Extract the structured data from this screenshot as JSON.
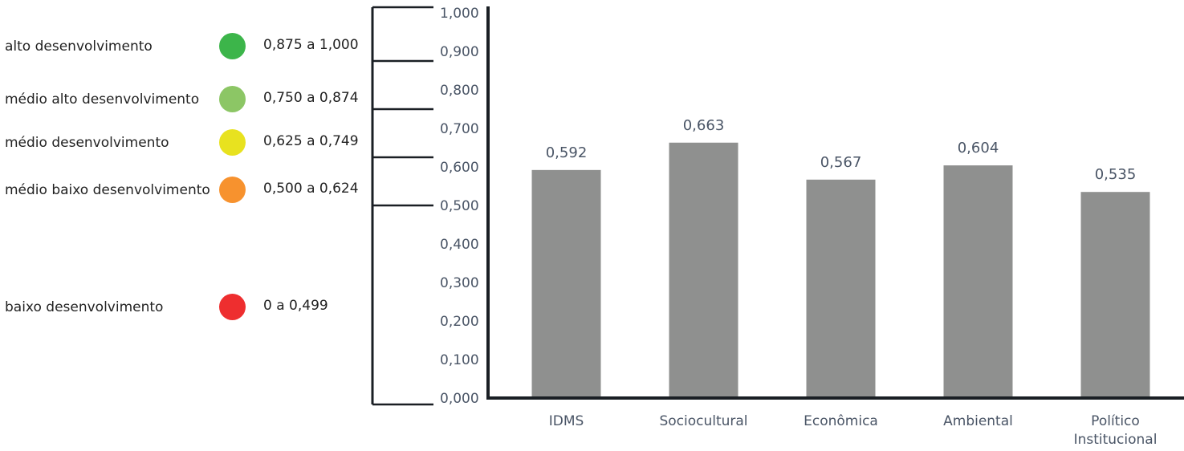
{
  "legend": [
    {
      "label": "alto desenvolvimento",
      "range": "0,875 a 1,000",
      "color": "#3cb54a"
    },
    {
      "label": "médio alto desenvolvimento",
      "range": "0,750 a 0,874",
      "color": "#8cc665"
    },
    {
      "label": "médio desenvolvimento",
      "range": "0,625 a 0,749",
      "color": "#e8e21f"
    },
    {
      "label": "médio baixo desenvolvimento",
      "range": "0,500 a 0,624",
      "color": "#f7922e"
    },
    {
      "label": "baixo desenvolvimento",
      "range": "0 a 0,499",
      "color": "#ee2e2f"
    }
  ],
  "chart_data": {
    "type": "bar",
    "categories": [
      "IDMS",
      "Sociocultural",
      "Econômica",
      "Ambiental",
      "Político Institucional"
    ],
    "values": [
      0.592,
      0.663,
      0.567,
      0.604,
      0.535
    ],
    "value_labels": [
      "0,592",
      "0,663",
      "0,567",
      "0,604",
      "0,535"
    ],
    "ylim": [
      0,
      1.0
    ],
    "yticks": [
      "0,000",
      "0,100",
      "0,200",
      "0,300",
      "0,400",
      "0,500",
      "0,600",
      "0,700",
      "0,800",
      "0,900",
      "1,000"
    ],
    "band_boundaries": [
      1.0,
      0.875,
      0.75,
      0.625,
      0.5,
      0.0
    ],
    "bar_color": "#8f908f",
    "label_color": "#4a5566",
    "grid": false
  }
}
